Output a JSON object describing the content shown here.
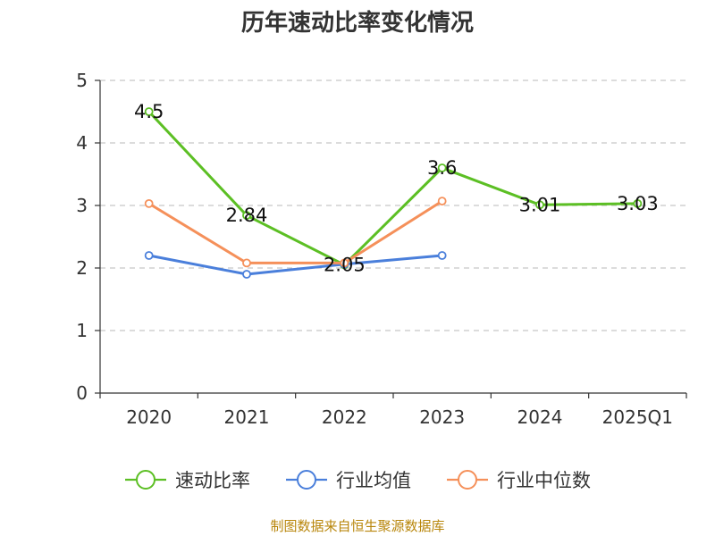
{
  "chart_data": {
    "type": "line",
    "title": "历年速动比率变化情况",
    "categories": [
      "2020",
      "2021",
      "2022",
      "2023",
      "2024",
      "2025Q1"
    ],
    "ylim": [
      0,
      5
    ],
    "yticks": [
      "0",
      "1",
      "2",
      "3",
      "4",
      "5"
    ],
    "grid": true,
    "legend_position": "bottom",
    "series": [
      {
        "name": "速动比率",
        "color": "#5cbf24",
        "values": [
          4.5,
          2.84,
          2.05,
          3.6,
          3.01,
          3.03
        ],
        "labels": [
          "4.5",
          "2.84",
          "2.05",
          "3.6",
          "3.01",
          "3.03"
        ]
      },
      {
        "name": "行业均值",
        "color": "#4a7fdb",
        "values": [
          2.2,
          1.9,
          2.06,
          2.2,
          null,
          null
        ],
        "labels": []
      },
      {
        "name": "行业中位数",
        "color": "#f5905a",
        "values": [
          3.03,
          2.08,
          2.08,
          3.07,
          null,
          null
        ],
        "labels": []
      }
    ],
    "source": "制图数据来自恒生聚源数据库"
  }
}
